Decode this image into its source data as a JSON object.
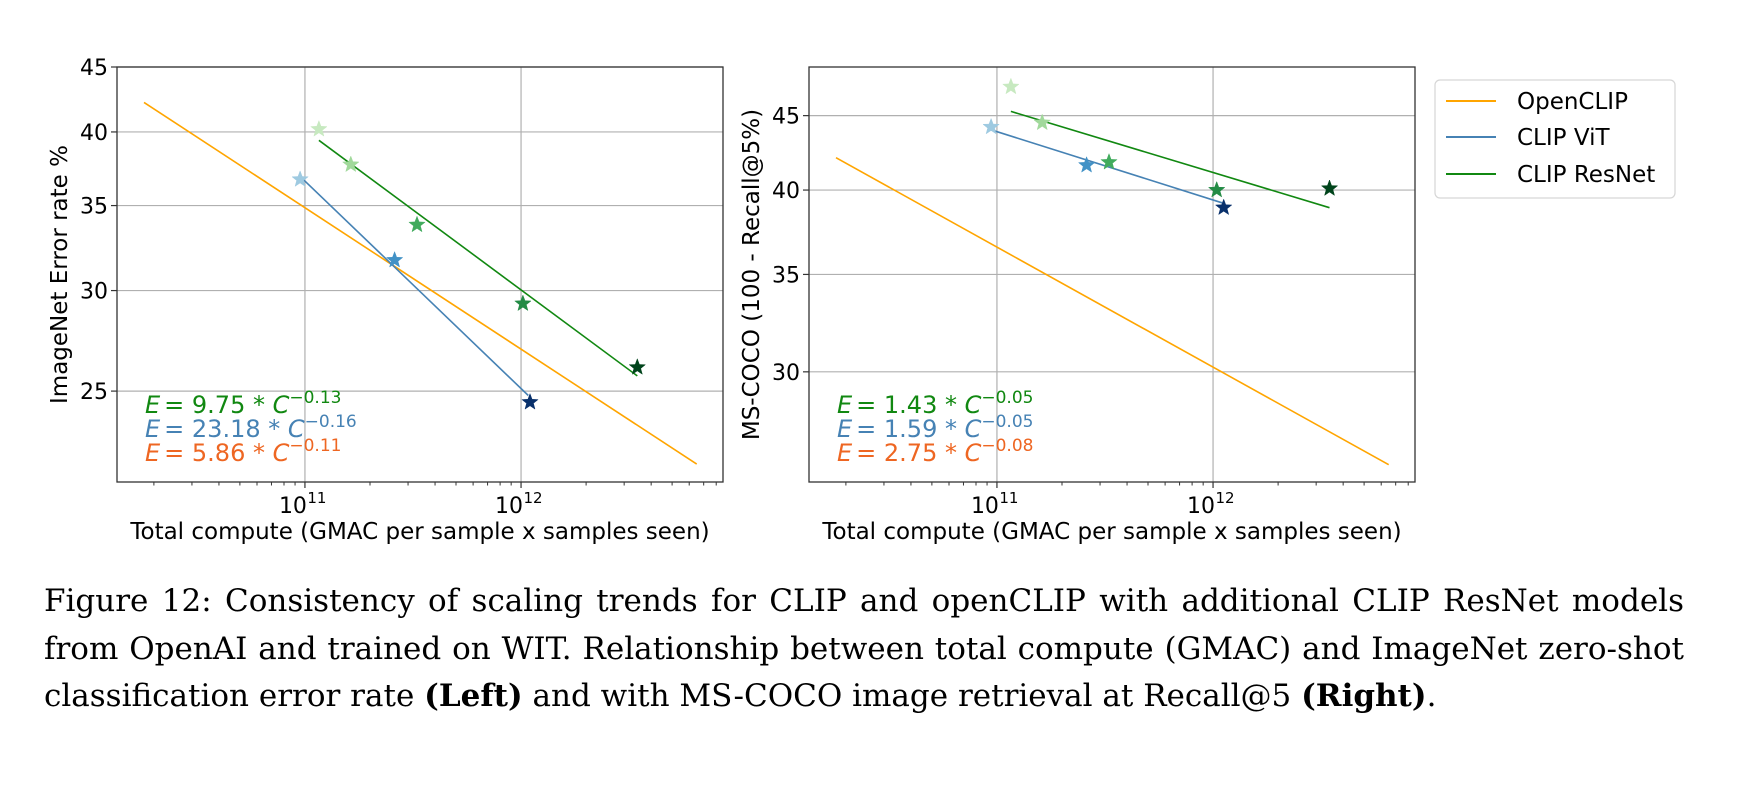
{
  "chart_data": [
    {
      "type": "scatter",
      "panel": "left",
      "xlabel": "Total compute (GMAC per sample x samples seen)",
      "ylabel": "ImageNet Error rate %",
      "xscale": "log",
      "yscale": "log",
      "xlim": [
        13500000000.0,
        8600000000000.0
      ],
      "ylim": [
        21.2,
        45
      ],
      "xticks": [
        {
          "value": 100000000000.0,
          "base": "10",
          "exp": "11"
        },
        {
          "value": 1000000000000.0,
          "base": "10",
          "exp": "12"
        }
      ],
      "yticks": [
        25,
        30,
        35,
        40,
        45
      ],
      "grid": true,
      "series": [
        {
          "name": "OpenCLIP",
          "color": "#ffa500",
          "fit_line": {
            "x": [
              18000000000.0,
              6500000000000.0
            ],
            "y": [
              42.2,
              21.9
            ]
          },
          "points": []
        },
        {
          "name": "CLIP ViT",
          "color": "#4682b4",
          "fit_line": {
            "x": [
              95000000000.0,
              1080000000000.0
            ],
            "y": [
              36.9,
              24.8
            ]
          },
          "points": [
            {
              "x": 95000000000.0,
              "y": 36.7,
              "color": "#9ecae1"
            },
            {
              "x": 260000000000.0,
              "y": 31.7,
              "color": "#4292c6"
            },
            {
              "x": 1100000000000.0,
              "y": 24.5,
              "color": "#08306b"
            }
          ]
        },
        {
          "name": "CLIP ResNet",
          "color": "#118811",
          "fit_line": {
            "x": [
              116000000000.0,
              3450000000000.0
            ],
            "y": [
              39.4,
              25.7
            ]
          },
          "points": [
            {
              "x": 116000000000.0,
              "y": 40.2,
              "color": "#c7e9c0"
            },
            {
              "x": 163000000000.0,
              "y": 37.7,
              "color": "#a1d99b"
            },
            {
              "x": 330000000000.0,
              "y": 33.8,
              "color": "#41ab5d"
            },
            {
              "x": 1020000000000.0,
              "y": 29.3,
              "color": "#238b45"
            },
            {
              "x": 3450000000000.0,
              "y": 26.1,
              "color": "#00441b"
            }
          ]
        }
      ],
      "annotations": [
        {
          "lhs": "E",
          "coef": "= 9.75 * ",
          "var": "C",
          "exp": "−0.13",
          "color": "#118811"
        },
        {
          "lhs": "E",
          "coef": "= 23.18 * ",
          "var": "C",
          "exp": "−0.16",
          "color": "#4682b4"
        },
        {
          "lhs": "E",
          "coef": "= 5.86 * ",
          "var": "C",
          "exp": "−0.11",
          "color": "#ee6622"
        }
      ]
    },
    {
      "type": "scatter",
      "panel": "right",
      "xlabel": "Total compute (GMAC per sample x samples seen)",
      "ylabel": "MS-COCO (100 - Recall@5%)",
      "xscale": "log",
      "yscale": "log",
      "xlim": [
        13500000000.0,
        8600000000000.0
      ],
      "ylim": [
        25.2,
        48.6
      ],
      "xticks": [
        {
          "value": 100000000000.0,
          "base": "10",
          "exp": "11"
        },
        {
          "value": 1000000000000.0,
          "base": "10",
          "exp": "12"
        }
      ],
      "yticks": [
        30,
        35,
        40,
        45
      ],
      "grid": true,
      "series": [
        {
          "name": "OpenCLIP",
          "color": "#ffa500",
          "fit_line": {
            "x": [
              18000000000.0,
              6500000000000.0
            ],
            "y": [
              42.1,
              25.9
            ]
          },
          "points": []
        },
        {
          "name": "CLIP ViT",
          "color": "#4682b4",
          "fit_line": {
            "x": [
              94000000000.0,
              1100000000000.0
            ],
            "y": [
              44.0,
              39.2
            ]
          },
          "points": [
            {
              "x": 94000000000.0,
              "y": 44.2,
              "color": "#9ecae1"
            },
            {
              "x": 260000000000.0,
              "y": 41.6,
              "color": "#4292c6"
            },
            {
              "x": 1120000000000.0,
              "y": 38.9,
              "color": "#08306b"
            }
          ]
        },
        {
          "name": "CLIP ResNet",
          "color": "#118811",
          "fit_line": {
            "x": [
              116000000000.0,
              3460000000000.0
            ],
            "y": [
              45.3,
              38.9
            ]
          },
          "points": [
            {
              "x": 116000000000.0,
              "y": 47.1,
              "color": "#c7e9c0"
            },
            {
              "x": 162000000000.0,
              "y": 44.5,
              "color": "#a1d99b"
            },
            {
              "x": 330000000000.0,
              "y": 41.8,
              "color": "#41ab5d"
            },
            {
              "x": 1040000000000.0,
              "y": 40.0,
              "color": "#238b45"
            },
            {
              "x": 3460000000000.0,
              "y": 40.1,
              "color": "#00441b"
            }
          ]
        }
      ],
      "annotations": [
        {
          "lhs": "E",
          "coef": "= 1.43 * ",
          "var": "C",
          "exp": "−0.05",
          "color": "#118811"
        },
        {
          "lhs": "E",
          "coef": "= 1.59 * ",
          "var": "C",
          "exp": "−0.05",
          "color": "#4682b4"
        },
        {
          "lhs": "E",
          "coef": "= 2.75 * ",
          "var": "C",
          "exp": "−0.08",
          "color": "#ee6622"
        }
      ]
    }
  ],
  "legend": {
    "placement": "right",
    "entries": [
      {
        "label": "OpenCLIP",
        "color": "#ffa500"
      },
      {
        "label": "CLIP ViT",
        "color": "#4682b4"
      },
      {
        "label": "CLIP ResNet",
        "color": "#118811"
      }
    ]
  },
  "caption": {
    "prefix": "Figure 12: Consistency of scaling trends for CLIP and openCLIP with additional CLIP ResNet models from OpenAI and trained on WIT. Relationship between total compute (GMAC) and ImageNet zero-shot classification error rate ",
    "left_label": "(Left)",
    "middle": " and with MS-COCO image retrieval at Recall@5 ",
    "right_label": "(Right)",
    "suffix": "."
  }
}
